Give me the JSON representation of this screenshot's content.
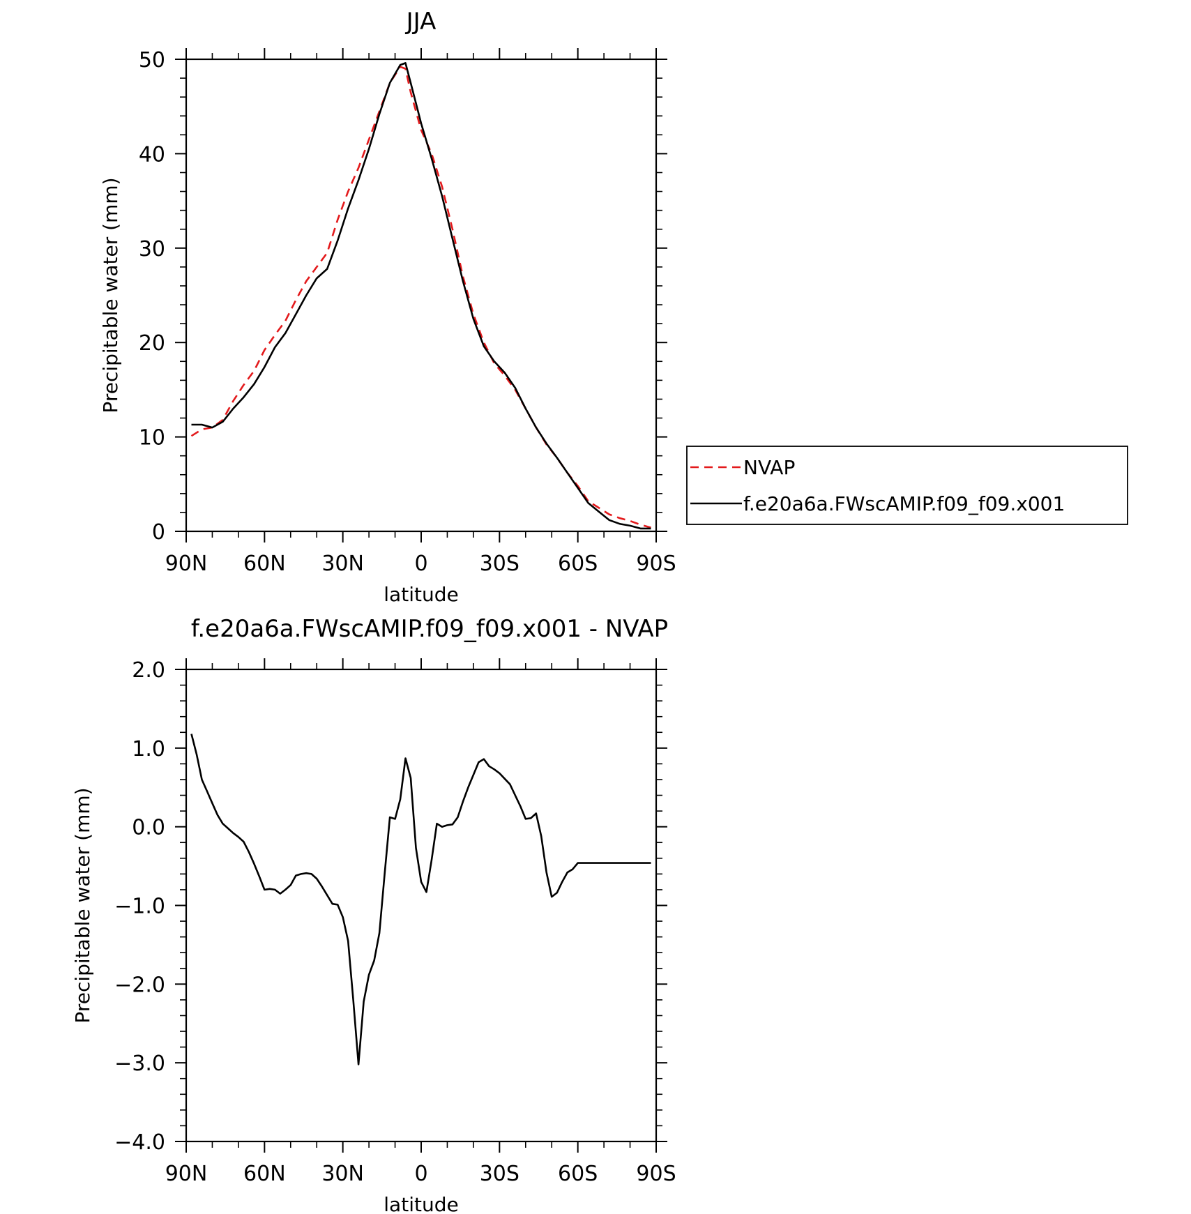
{
  "chart_data": [
    {
      "type": "line",
      "title": "JJA",
      "xlabel": "latitude",
      "ylabel": "Precipitable water (mm)",
      "xlim": [
        -90,
        90
      ],
      "ylim": [
        0,
        50
      ],
      "x_ticks": [
        -90,
        -60,
        -30,
        0,
        30,
        60,
        90
      ],
      "x_tick_labels": [
        "90N",
        "60N",
        "30N",
        "0",
        "30S",
        "60S",
        "90S"
      ],
      "y_ticks": [
        0,
        10,
        20,
        30,
        40,
        50
      ],
      "y_tick_labels": [
        "0",
        "10",
        "20",
        "30",
        "40",
        "50"
      ],
      "legend": "right",
      "x": [
        -88,
        -84,
        -80,
        -76,
        -72,
        -68,
        -64,
        -60,
        -56,
        -52,
        -48,
        -44,
        -40,
        -36,
        -32,
        -28,
        -24,
        -20,
        -16,
        -12,
        -8,
        -6,
        -4,
        0,
        4,
        8,
        12,
        16,
        20,
        24,
        28,
        32,
        36,
        40,
        44,
        48,
        52,
        56,
        60,
        64,
        68,
        72,
        76,
        80,
        84,
        88
      ],
      "series": [
        {
          "name": "NVAP",
          "color": "#e31a1c",
          "style": "dashed",
          "values": [
            10.1,
            10.8,
            11.0,
            11.8,
            13.8,
            15.5,
            17.0,
            19.2,
            20.8,
            22.3,
            24.5,
            26.5,
            28.0,
            29.5,
            33.0,
            36.0,
            38.5,
            41.5,
            44.5,
            47.5,
            49.2,
            49.0,
            46.5,
            42.5,
            40.0,
            36.5,
            32.0,
            27.0,
            23.0,
            20.0,
            17.8,
            16.5,
            15.0,
            13.0,
            11.0,
            9.2,
            7.8,
            6.2,
            4.8,
            3.2,
            2.5,
            1.8,
            1.4,
            1.1,
            0.7,
            0.4
          ],
          "visible_range": [
            -88,
            88
          ]
        },
        {
          "name": "f.e20a6a.FWscAMIP.f09_f09.x001",
          "color": "#000000",
          "style": "solid",
          "values": [
            11.3,
            11.3,
            11.0,
            11.6,
            13.0,
            14.2,
            15.6,
            17.4,
            19.5,
            21.0,
            23.0,
            25.0,
            26.8,
            27.8,
            30.8,
            34.2,
            37.2,
            40.5,
            44.2,
            47.5,
            49.4,
            49.6,
            47.5,
            43.2,
            39.5,
            35.5,
            31.0,
            26.5,
            22.5,
            19.6,
            18.0,
            16.8,
            15.2,
            13.0,
            11.0,
            9.3,
            7.8,
            6.2,
            4.6,
            3.0,
            2.1,
            1.2,
            0.8,
            0.6,
            0.3,
            0.3
          ]
        }
      ]
    },
    {
      "type": "line",
      "title": "f.e20a6a.FWscAMIP.f09_f09.x001 - NVAP",
      "xlabel": "latitude",
      "ylabel": "Precipitable water (mm)",
      "xlim": [
        -90,
        90
      ],
      "ylim": [
        -4.0,
        2.0
      ],
      "x_ticks": [
        -90,
        -60,
        -30,
        0,
        30,
        60,
        90
      ],
      "x_tick_labels": [
        "90N",
        "60N",
        "30N",
        "0",
        "30S",
        "60S",
        "90S"
      ],
      "y_ticks": [
        -4.0,
        -3.0,
        -2.0,
        -1.0,
        0.0,
        1.0,
        2.0
      ],
      "y_tick_labels": [
        "−4.0",
        "−3.0",
        "−2.0",
        "−1.0",
        "0.0",
        "1.0",
        "2.0"
      ],
      "x": [
        -88,
        -86,
        -84,
        -82,
        -80,
        -78,
        -76,
        -74,
        -72,
        -70,
        -68,
        -66,
        -64,
        -62,
        -60,
        -58,
        -56,
        -54,
        -52,
        -50,
        -48,
        -46,
        -44,
        -42,
        -40,
        -38,
        -36,
        -34,
        -32,
        -30,
        -28,
        -26,
        -24,
        -22,
        -20,
        -18,
        -16,
        -14,
        -12,
        -10,
        -8,
        -6,
        -4,
        -2,
        0,
        2,
        4,
        6,
        8,
        10,
        12,
        14,
        16,
        18,
        20,
        22,
        24,
        26,
        28,
        30,
        32,
        34,
        36,
        38,
        40,
        42,
        44,
        46,
        48,
        50,
        52,
        54,
        56,
        58,
        60,
        62,
        64,
        66,
        68,
        70,
        72,
        74,
        76,
        78,
        80,
        82,
        84,
        86,
        88
      ],
      "series": [
        {
          "color": "#000000",
          "style": "solid",
          "values": [
            1.18,
            0.92,
            0.6,
            0.45,
            0.3,
            0.15,
            0.04,
            -0.02,
            -0.08,
            -0.13,
            -0.19,
            -0.32,
            -0.47,
            -0.63,
            -0.8,
            -0.79,
            -0.8,
            -0.85,
            -0.8,
            -0.74,
            -0.62,
            -0.6,
            -0.59,
            -0.6,
            -0.66,
            -0.76,
            -0.87,
            -0.98,
            -0.99,
            -1.15,
            -1.45,
            -2.2,
            -3.02,
            -2.22,
            -1.88,
            -1.7,
            -1.35,
            -0.6,
            0.12,
            0.1,
            0.35,
            0.87,
            0.62,
            -0.27,
            -0.7,
            -0.83,
            -0.42,
            0.04,
            0.0,
            0.02,
            0.03,
            0.12,
            0.32,
            0.5,
            0.66,
            0.82,
            0.86,
            0.77,
            0.73,
            0.68,
            0.61,
            0.54,
            0.4,
            0.26,
            0.1,
            0.11,
            0.17,
            -0.12,
            -0.58,
            -0.89,
            -0.84,
            -0.7,
            -0.58,
            -0.54,
            -0.46,
            -0.46,
            -0.46,
            -0.46,
            -0.46,
            -0.46,
            -0.46,
            -0.46,
            -0.46,
            -0.46,
            -0.46,
            -0.46,
            -0.46,
            -0.46,
            -0.46
          ],
          "x_end": 88
        }
      ]
    }
  ]
}
